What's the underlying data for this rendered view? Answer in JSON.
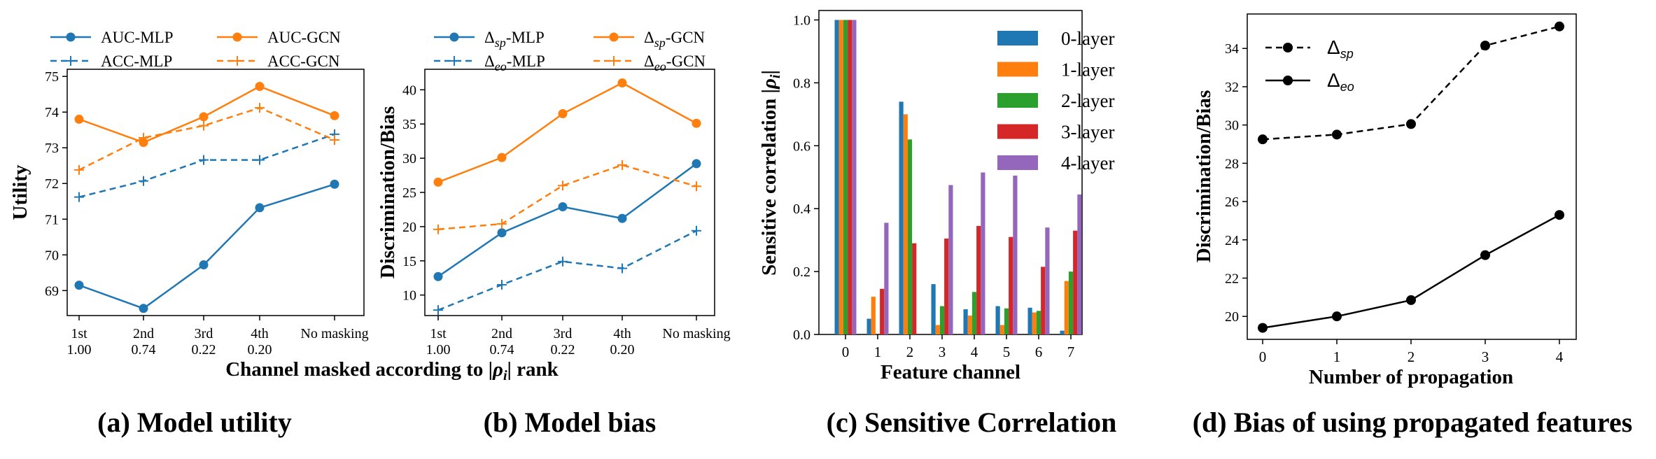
{
  "chart_data": [
    {
      "id": "a",
      "type": "line",
      "caption": "(a) Model utility",
      "ylabel": "Utility",
      "xlabel": "Channel masked according to |ρ_i| rank",
      "categories": [
        [
          "1st",
          "1.00"
        ],
        [
          "2nd",
          "0.74"
        ],
        [
          "3rd",
          "0.22"
        ],
        [
          "4th",
          "0.20"
        ],
        [
          "No masking",
          ""
        ]
      ],
      "ylim": [
        68.3,
        75.2
      ],
      "yticks": [
        69,
        70,
        71,
        72,
        73,
        74,
        75
      ],
      "legend_placement": "above, two columns",
      "series": [
        {
          "name": "AUC-MLP",
          "color": "#1f77b4",
          "style": "solid",
          "marker": "circle",
          "values": [
            69.15,
            68.5,
            69.72,
            71.32,
            71.98
          ]
        },
        {
          "name": "AUC-GCN",
          "color": "#ff7f0e",
          "style": "solid",
          "marker": "circle",
          "values": [
            73.8,
            73.15,
            73.87,
            74.72,
            73.9
          ]
        },
        {
          "name": "ACC-MLP",
          "color": "#1f77b4",
          "style": "dashed",
          "marker": "plus",
          "values": [
            71.62,
            72.07,
            72.66,
            72.66,
            73.38
          ]
        },
        {
          "name": "ACC-GCN",
          "color": "#ff7f0e",
          "style": "dashed",
          "marker": "plus",
          "values": [
            72.38,
            73.28,
            73.62,
            74.12,
            73.22
          ]
        }
      ]
    },
    {
      "id": "b",
      "type": "line",
      "caption": "(b) Model bias",
      "ylabel": "Discrimination/Bias",
      "xlabel": "",
      "categories": [
        [
          "1st",
          "1.00"
        ],
        [
          "2nd",
          "0.74"
        ],
        [
          "3rd",
          "0.22"
        ],
        [
          "4th",
          "0.20"
        ],
        [
          "No masking",
          ""
        ]
      ],
      "ylim": [
        7,
        43
      ],
      "yticks": [
        10,
        15,
        20,
        25,
        30,
        35,
        40
      ],
      "legend_placement": "above, two columns",
      "series": [
        {
          "name": "Δsp-MLP",
          "color": "#1f77b4",
          "style": "solid",
          "marker": "circle",
          "values": [
            12.7,
            19.1,
            22.9,
            21.2,
            29.2
          ]
        },
        {
          "name": "Δsp-GCN",
          "color": "#ff7f0e",
          "style": "solid",
          "marker": "circle",
          "values": [
            26.5,
            30.1,
            36.5,
            41.0,
            35.1
          ]
        },
        {
          "name": "Δeo-MLP",
          "color": "#1f77b4",
          "style": "dashed",
          "marker": "plus",
          "values": [
            7.8,
            11.5,
            14.9,
            13.9,
            19.4
          ]
        },
        {
          "name": "Δeo-GCN",
          "color": "#ff7f0e",
          "style": "dashed",
          "marker": "plus",
          "values": [
            19.6,
            20.4,
            26.0,
            29.0,
            25.9
          ]
        }
      ]
    },
    {
      "id": "c",
      "type": "bar",
      "caption": "(c) Sensitive Correlation",
      "ylabel": "Sensitive correlation |ρ_i|",
      "xlabel": "Feature channel",
      "categories": [
        "0",
        "1",
        "2",
        "3",
        "4",
        "5",
        "6",
        "7"
      ],
      "ylim": [
        0,
        1.03
      ],
      "yticks": [
        "0.0",
        "0.2",
        "0.4",
        "0.6",
        "0.8",
        "1.0"
      ],
      "legend_placement": "top-right",
      "series": [
        {
          "name": "0-layer",
          "color": "#1f77b4",
          "values": [
            1.0,
            0.05,
            0.74,
            0.16,
            0.08,
            0.09,
            0.085,
            0.012
          ]
        },
        {
          "name": "1-layer",
          "color": "#ff7f0e",
          "values": [
            1.0,
            0.12,
            0.7,
            0.03,
            0.06,
            0.03,
            0.07,
            0.17
          ]
        },
        {
          "name": "2-layer",
          "color": "#2ca02c",
          "values": [
            1.0,
            0.0,
            0.62,
            0.09,
            0.135,
            0.083,
            0.075,
            0.2
          ]
        },
        {
          "name": "3-layer",
          "color": "#d62728",
          "values": [
            1.0,
            0.145,
            0.29,
            0.305,
            0.345,
            0.31,
            0.215,
            0.33
          ]
        },
        {
          "name": "4-layer",
          "color": "#9467bd",
          "values": [
            1.0,
            0.355,
            0.0,
            0.475,
            0.515,
            0.505,
            0.34,
            0.445
          ]
        }
      ]
    },
    {
      "id": "d",
      "type": "line",
      "caption": "(d) Bias of using propagated features",
      "ylabel": "Discrimination/Bias",
      "xlabel": "Number of propagation",
      "x": [
        0,
        1,
        2,
        3,
        4
      ],
      "xticks": [
        "0",
        "1",
        "2",
        "3",
        "4"
      ],
      "ylim": [
        18.8,
        35.8
      ],
      "yticks": [
        20,
        22,
        24,
        26,
        28,
        30,
        32,
        34
      ],
      "legend_placement": "top-left",
      "series": [
        {
          "name": "Δsp",
          "color": "#000000",
          "style": "dashed",
          "marker": "circle",
          "values": [
            29.25,
            29.5,
            30.05,
            34.15,
            35.15
          ]
        },
        {
          "name": "Δeo",
          "color": "#000000",
          "style": "solid",
          "marker": "circle",
          "values": [
            19.4,
            20.0,
            20.85,
            23.2,
            25.3
          ]
        }
      ]
    }
  ]
}
